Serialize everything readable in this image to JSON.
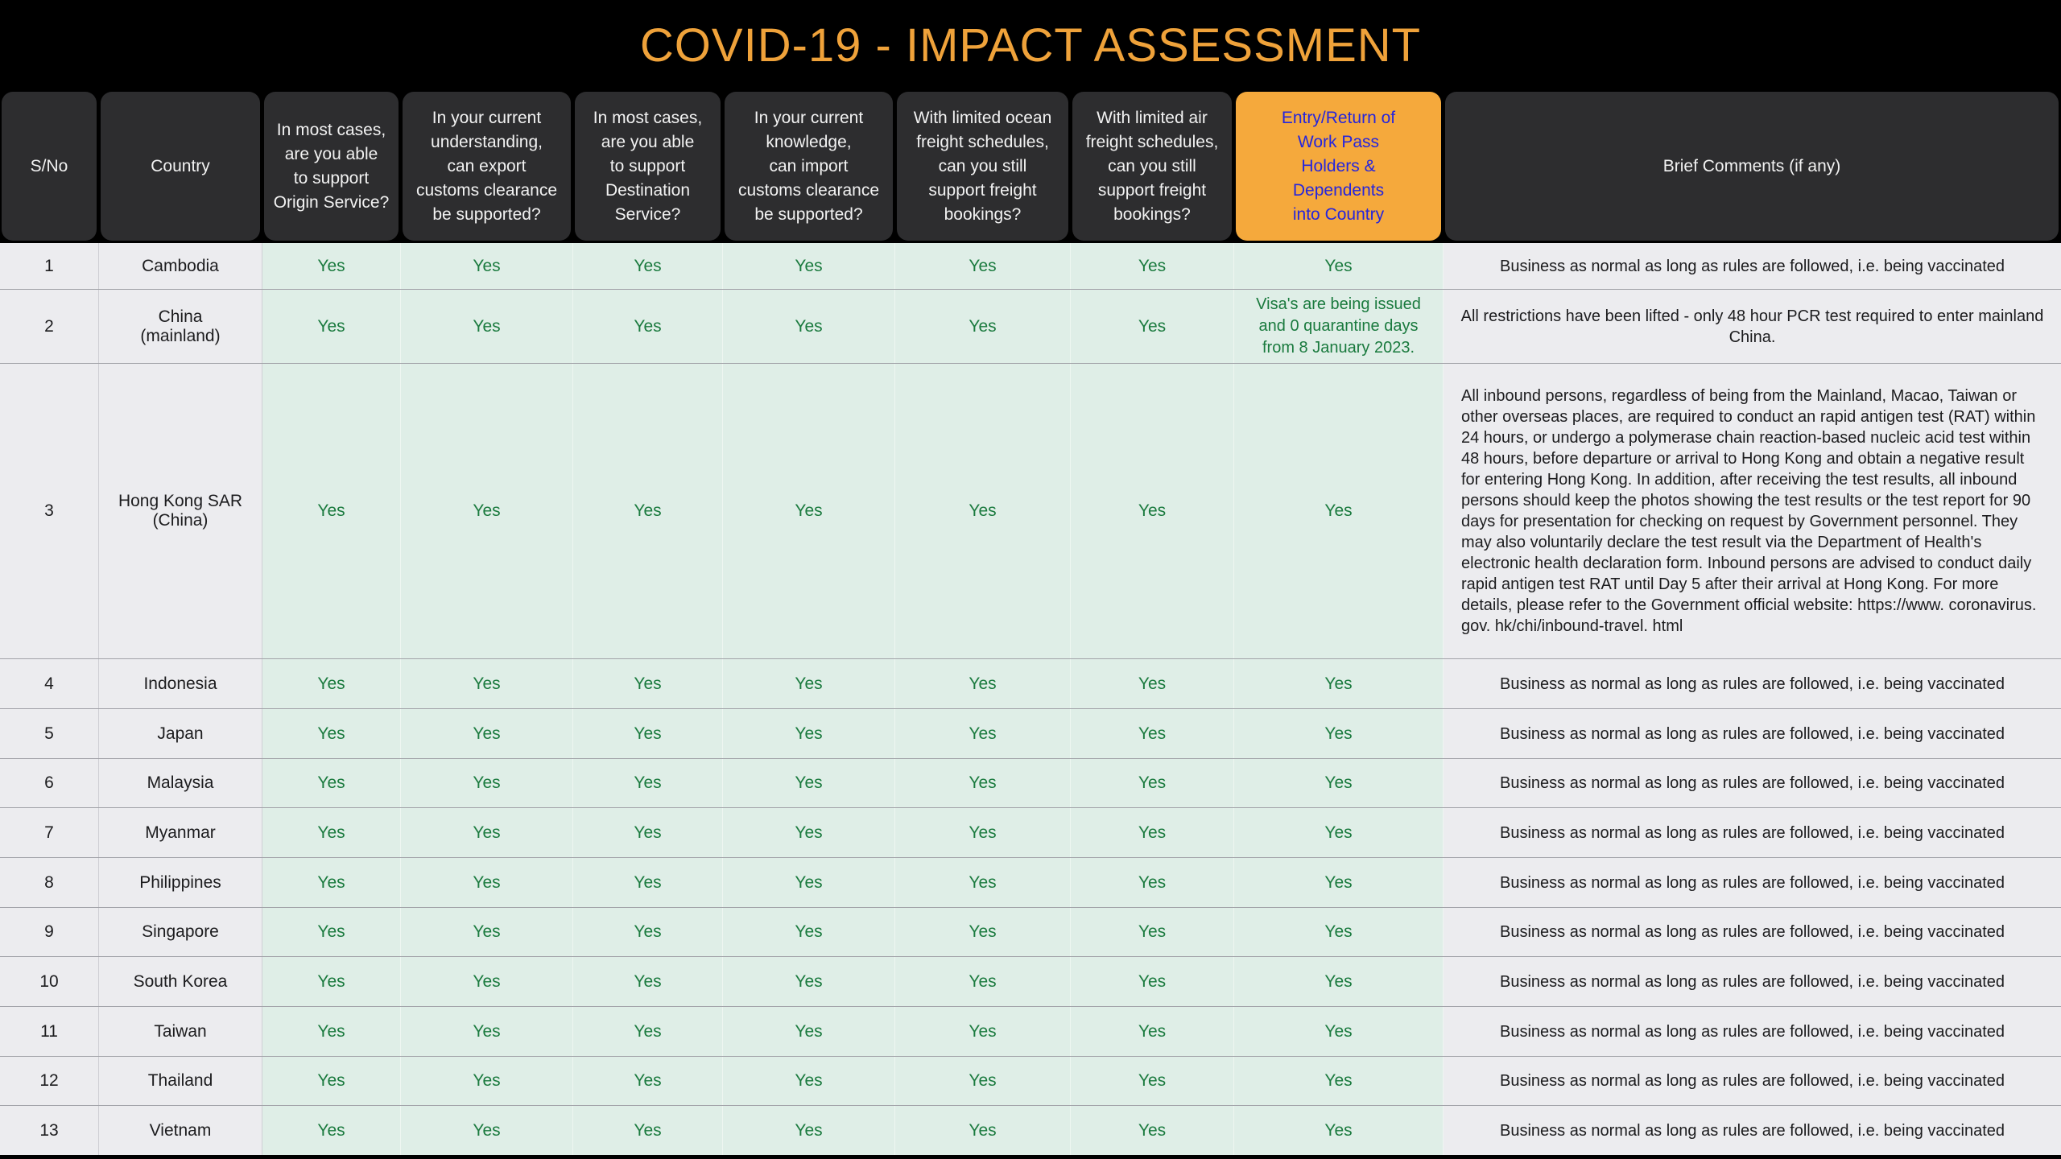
{
  "title": "COVID-19 - IMPACT ASSESSMENT",
  "colors": {
    "page_background": "#000000",
    "title_text": "#efa23a",
    "header_cell_background": "#2d2d2f",
    "header_cell_text": "#f2f2f2",
    "highlight_header_background": "#f5a93c",
    "highlight_header_text": "#2525dd",
    "answer_cell_background": "#dfeee7",
    "answer_text_green": "#1a7a3e",
    "label_cell_background": "#ececef",
    "body_text": "#1c1c1e"
  },
  "table": {
    "columns": [
      {
        "id": "sno",
        "label": "S/No",
        "highlight": false
      },
      {
        "id": "country",
        "label": "Country",
        "highlight": false
      },
      {
        "id": "origin_service",
        "label": "In most cases,\nare you able\nto support\nOrigin Service?",
        "highlight": false
      },
      {
        "id": "export_customs",
        "label": "In your current\nunderstanding,\ncan export\ncustoms clearance\nbe supported?",
        "highlight": false
      },
      {
        "id": "destination_service",
        "label": "In most cases,\nare you able\nto support\nDestination\nService?",
        "highlight": false
      },
      {
        "id": "import_customs",
        "label": "In your current\nknowledge,\ncan import\ncustoms clearance\nbe supported?",
        "highlight": false
      },
      {
        "id": "ocean_freight",
        "label": "With limited ocean\nfreight schedules,\ncan you still\nsupport freight\nbookings?",
        "highlight": false
      },
      {
        "id": "air_freight",
        "label": "With limited air\nfreight schedules,\ncan you still\nsupport freight\nbookings?",
        "highlight": false
      },
      {
        "id": "entry_return",
        "label": "Entry/Return of\nWork Pass\nHolders &\nDependents\ninto Country",
        "highlight": true
      },
      {
        "id": "comments",
        "label": "Brief Comments (if any)",
        "highlight": false
      }
    ],
    "rows": [
      {
        "sno": "1",
        "country": "Cambodia",
        "answers": [
          "Yes",
          "Yes",
          "Yes",
          "Yes",
          "Yes",
          "Yes",
          "Yes"
        ],
        "comment": "Business as normal as long as rules are followed, i.e. being vaccinated"
      },
      {
        "sno": "2",
        "country": "China\n(mainland)",
        "answers": [
          "Yes",
          "Yes",
          "Yes",
          "Yes",
          "Yes",
          "Yes",
          "Visa's are being issued and 0 quarantine days from 8 January 2023."
        ],
        "comment": "All restrictions have been lifted - only 48 hour PCR test required to enter mainland China."
      },
      {
        "sno": "3",
        "country": "Hong Kong SAR\n(China)",
        "answers": [
          "Yes",
          "Yes",
          "Yes",
          "Yes",
          "Yes",
          "Yes",
          "Yes"
        ],
        "comment": "All inbound persons, regardless of being from the Mainland, Macao, Taiwan or other overseas places, are required to conduct an rapid antigen test (RAT) within 24 hours, or undergo a polymerase chain reaction-based nucleic acid test within 48 hours, before departure or arrival to Hong Kong and obtain a negative result for entering Hong Kong. In addition, after receiving the test results, all inbound persons should keep the photos showing the test results or the test report for 90 days for presentation for checking on request by Government personnel. They may also voluntarily declare the test result via the Department of Health's electronic health declaration form. Inbound persons are advised to conduct daily rapid antigen test RAT until Day 5 after their arrival at Hong Kong. For more details, please refer to the Government official website: https://www. coronavirus. gov. hk/chi/inbound-travel. html"
      },
      {
        "sno": "4",
        "country": "Indonesia",
        "answers": [
          "Yes",
          "Yes",
          "Yes",
          "Yes",
          "Yes",
          "Yes",
          "Yes"
        ],
        "comment": "Business as normal as long as rules are followed, i.e. being vaccinated"
      },
      {
        "sno": "5",
        "country": "Japan",
        "answers": [
          "Yes",
          "Yes",
          "Yes",
          "Yes",
          "Yes",
          "Yes",
          "Yes"
        ],
        "comment": "Business as normal as long as rules are followed, i.e. being vaccinated"
      },
      {
        "sno": "6",
        "country": "Malaysia",
        "answers": [
          "Yes",
          "Yes",
          "Yes",
          "Yes",
          "Yes",
          "Yes",
          "Yes"
        ],
        "comment": "Business as normal as long as rules are followed, i.e. being vaccinated"
      },
      {
        "sno": "7",
        "country": "Myanmar",
        "answers": [
          "Yes",
          "Yes",
          "Yes",
          "Yes",
          "Yes",
          "Yes",
          "Yes"
        ],
        "comment": "Business as normal as long as rules are followed, i.e. being vaccinated"
      },
      {
        "sno": "8",
        "country": "Philippines",
        "answers": [
          "Yes",
          "Yes",
          "Yes",
          "Yes",
          "Yes",
          "Yes",
          "Yes"
        ],
        "comment": "Business as normal as long as rules are followed, i.e. being vaccinated"
      },
      {
        "sno": "9",
        "country": "Singapore",
        "answers": [
          "Yes",
          "Yes",
          "Yes",
          "Yes",
          "Yes",
          "Yes",
          "Yes"
        ],
        "comment": "Business as normal as long as rules are followed, i.e. being vaccinated"
      },
      {
        "sno": "10",
        "country": "South Korea",
        "answers": [
          "Yes",
          "Yes",
          "Yes",
          "Yes",
          "Yes",
          "Yes",
          "Yes"
        ],
        "comment": "Business as normal as long as rules are followed, i.e. being vaccinated"
      },
      {
        "sno": "11",
        "country": "Taiwan",
        "answers": [
          "Yes",
          "Yes",
          "Yes",
          "Yes",
          "Yes",
          "Yes",
          "Yes"
        ],
        "comment": "Business as normal as long as rules are followed, i.e. being vaccinated"
      },
      {
        "sno": "12",
        "country": "Thailand",
        "answers": [
          "Yes",
          "Yes",
          "Yes",
          "Yes",
          "Yes",
          "Yes",
          "Yes"
        ],
        "comment": "Business as normal as long as rules are followed, i.e. being vaccinated"
      },
      {
        "sno": "13",
        "country": "Vietnam",
        "answers": [
          "Yes",
          "Yes",
          "Yes",
          "Yes",
          "Yes",
          "Yes",
          "Yes"
        ],
        "comment": "Business as normal as long as rules are followed, i.e. being vaccinated"
      }
    ]
  }
}
